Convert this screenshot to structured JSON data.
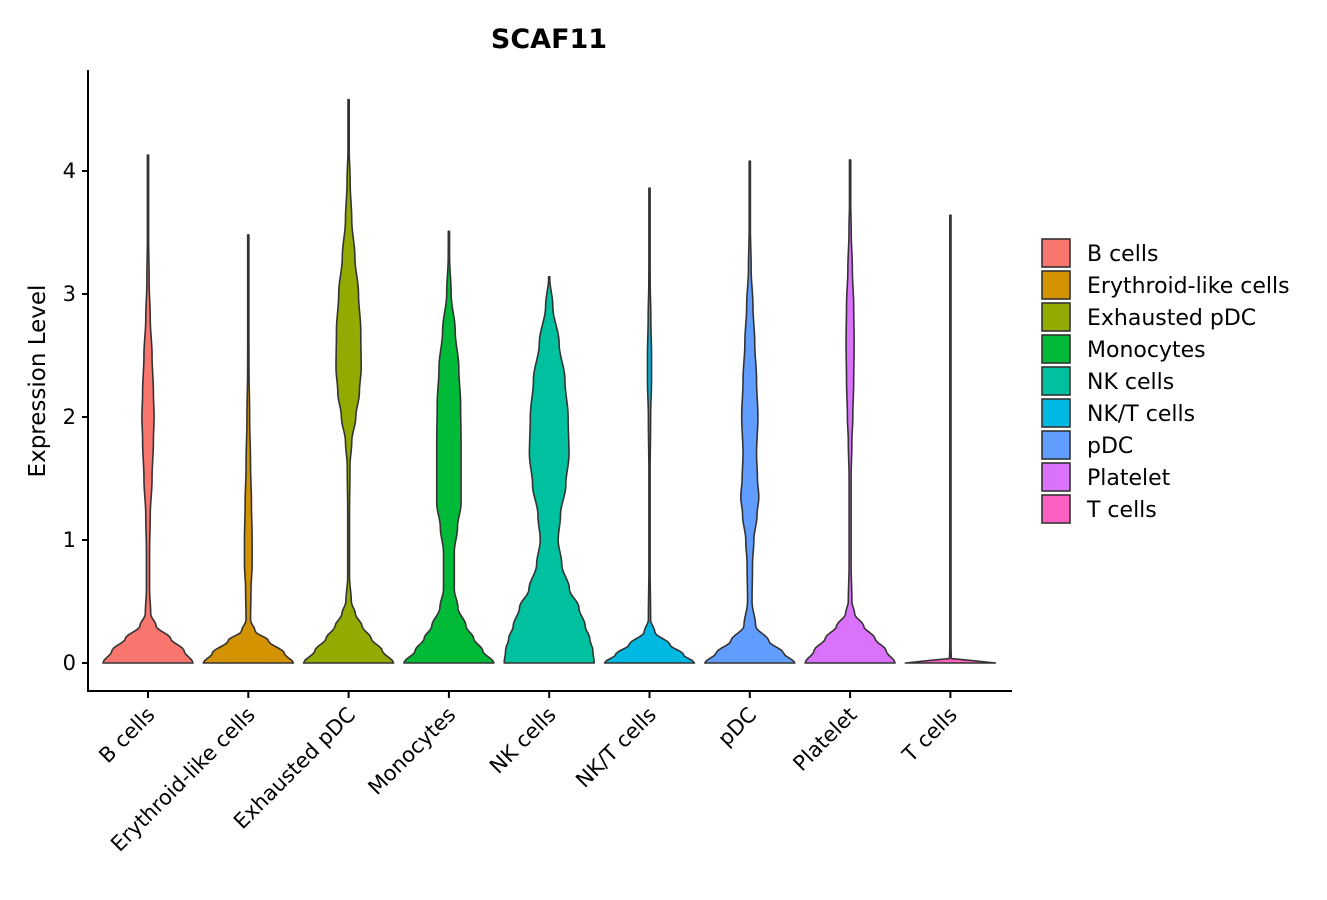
{
  "chart_data": {
    "type": "violin",
    "title": "SCAF11",
    "xlabel": "",
    "ylabel": "Expression Level",
    "ylim": [
      -0.22,
      4.8
    ],
    "yticks": [
      0,
      1,
      2,
      3,
      4
    ],
    "categories": [
      "B cells",
      "Erythroid-like cells",
      "Exhausted pDC",
      "Monocytes",
      "NK cells",
      "NK/T cells",
      "pDC",
      "Platelet",
      "T cells"
    ],
    "colors": [
      "#F8766D",
      "#D39200",
      "#93AA00",
      "#00BA38",
      "#00C19F",
      "#00B9E3",
      "#619CFF",
      "#DB72FB",
      "#FF61C3"
    ],
    "legend": {
      "position": "right",
      "entries": [
        "B cells",
        "Erythroid-like cells",
        "Exhausted pDC",
        "Monocytes",
        "NK cells",
        "NK/T cells",
        "pDC",
        "Platelet",
        "T cells"
      ]
    },
    "series": [
      {
        "name": "B cells",
        "max": 4.13,
        "profile": [
          [
            0,
            1.0
          ],
          [
            0.1,
            0.8
          ],
          [
            0.2,
            0.5
          ],
          [
            0.3,
            0.18
          ],
          [
            0.4,
            0.06
          ],
          [
            0.6,
            0.035
          ],
          [
            0.9,
            0.035
          ],
          [
            1.2,
            0.05
          ],
          [
            1.5,
            0.09
          ],
          [
            1.8,
            0.12
          ],
          [
            2.0,
            0.135
          ],
          [
            2.2,
            0.12
          ],
          [
            2.5,
            0.09
          ],
          [
            2.8,
            0.05
          ],
          [
            3.1,
            0.025
          ],
          [
            3.5,
            0.012
          ],
          [
            4.13,
            0.005
          ]
        ]
      },
      {
        "name": "Erythroid-like cells",
        "max": 3.48,
        "profile": [
          [
            0,
            1.0
          ],
          [
            0.08,
            0.8
          ],
          [
            0.18,
            0.45
          ],
          [
            0.26,
            0.15
          ],
          [
            0.35,
            0.05
          ],
          [
            0.6,
            0.06
          ],
          [
            0.8,
            0.085
          ],
          [
            1.0,
            0.085
          ],
          [
            1.3,
            0.07
          ],
          [
            1.6,
            0.05
          ],
          [
            2.0,
            0.03
          ],
          [
            2.4,
            0.015
          ],
          [
            3.0,
            0.006
          ],
          [
            3.48,
            0.004
          ]
        ]
      },
      {
        "name": "Exhausted pDC",
        "max": 4.58,
        "profile": [
          [
            0,
            1.0
          ],
          [
            0.1,
            0.75
          ],
          [
            0.2,
            0.5
          ],
          [
            0.3,
            0.3
          ],
          [
            0.4,
            0.15
          ],
          [
            0.5,
            0.06
          ],
          [
            0.7,
            0.02
          ],
          [
            1.2,
            0.02
          ],
          [
            1.6,
            0.03
          ],
          [
            1.8,
            0.07
          ],
          [
            2.0,
            0.16
          ],
          [
            2.2,
            0.24
          ],
          [
            2.4,
            0.28
          ],
          [
            2.7,
            0.27
          ],
          [
            3.0,
            0.22
          ],
          [
            3.3,
            0.14
          ],
          [
            3.6,
            0.07
          ],
          [
            3.9,
            0.035
          ],
          [
            4.2,
            0.012
          ],
          [
            4.58,
            0.005
          ]
        ]
      },
      {
        "name": "Monocytes",
        "max": 3.51,
        "profile": [
          [
            0,
            1.0
          ],
          [
            0.1,
            0.75
          ],
          [
            0.2,
            0.55
          ],
          [
            0.3,
            0.38
          ],
          [
            0.45,
            0.2
          ],
          [
            0.6,
            0.12
          ],
          [
            0.9,
            0.12
          ],
          [
            1.1,
            0.19
          ],
          [
            1.3,
            0.27
          ],
          [
            1.5,
            0.27
          ],
          [
            1.8,
            0.27
          ],
          [
            2.1,
            0.26
          ],
          [
            2.4,
            0.22
          ],
          [
            2.7,
            0.14
          ],
          [
            3.0,
            0.05
          ],
          [
            3.3,
            0.015
          ],
          [
            3.51,
            0.005
          ]
        ]
      },
      {
        "name": "NK cells",
        "max": 3.14,
        "profile": [
          [
            0,
            1.0
          ],
          [
            0.1,
            0.97
          ],
          [
            0.2,
            0.9
          ],
          [
            0.3,
            0.8
          ],
          [
            0.45,
            0.66
          ],
          [
            0.6,
            0.45
          ],
          [
            0.8,
            0.28
          ],
          [
            1.0,
            0.2
          ],
          [
            1.2,
            0.25
          ],
          [
            1.45,
            0.37
          ],
          [
            1.7,
            0.44
          ],
          [
            2.0,
            0.42
          ],
          [
            2.3,
            0.35
          ],
          [
            2.6,
            0.22
          ],
          [
            2.9,
            0.08
          ],
          [
            3.14,
            0.01
          ]
        ]
      },
      {
        "name": "NK/T cells",
        "max": 3.86,
        "profile": [
          [
            0,
            1.0
          ],
          [
            0.07,
            0.75
          ],
          [
            0.15,
            0.45
          ],
          [
            0.25,
            0.12
          ],
          [
            0.35,
            0.025
          ],
          [
            0.8,
            0.012
          ],
          [
            1.5,
            0.012
          ],
          [
            2.0,
            0.025
          ],
          [
            2.3,
            0.045
          ],
          [
            2.5,
            0.045
          ],
          [
            2.8,
            0.03
          ],
          [
            3.1,
            0.015
          ],
          [
            3.5,
            0.006
          ],
          [
            3.86,
            0.004
          ]
        ]
      },
      {
        "name": "pDC",
        "max": 4.08,
        "profile": [
          [
            0,
            1.0
          ],
          [
            0.08,
            0.75
          ],
          [
            0.18,
            0.42
          ],
          [
            0.3,
            0.13
          ],
          [
            0.5,
            0.05
          ],
          [
            0.8,
            0.06
          ],
          [
            1.0,
            0.09
          ],
          [
            1.2,
            0.16
          ],
          [
            1.35,
            0.2
          ],
          [
            1.5,
            0.17
          ],
          [
            1.7,
            0.15
          ],
          [
            2.0,
            0.18
          ],
          [
            2.3,
            0.15
          ],
          [
            2.6,
            0.11
          ],
          [
            2.9,
            0.07
          ],
          [
            3.2,
            0.03
          ],
          [
            3.6,
            0.01
          ],
          [
            4.08,
            0.004
          ]
        ]
      },
      {
        "name": "Platelet",
        "max": 4.09,
        "profile": [
          [
            0,
            1.0
          ],
          [
            0.1,
            0.8
          ],
          [
            0.2,
            0.55
          ],
          [
            0.3,
            0.3
          ],
          [
            0.4,
            0.1
          ],
          [
            0.5,
            0.04
          ],
          [
            0.8,
            0.022
          ],
          [
            1.5,
            0.022
          ],
          [
            1.8,
            0.04
          ],
          [
            2.0,
            0.06
          ],
          [
            2.3,
            0.08
          ],
          [
            2.6,
            0.09
          ],
          [
            2.9,
            0.08
          ],
          [
            3.2,
            0.05
          ],
          [
            3.5,
            0.025
          ],
          [
            3.8,
            0.01
          ],
          [
            4.09,
            0.004
          ]
        ]
      },
      {
        "name": "T cells",
        "max": 3.64,
        "profile": [
          [
            0,
            1.0
          ],
          [
            0.015,
            0.6
          ],
          [
            0.03,
            0.02
          ],
          [
            0.2,
            0.004
          ],
          [
            3.64,
            0.004
          ]
        ]
      }
    ]
  }
}
